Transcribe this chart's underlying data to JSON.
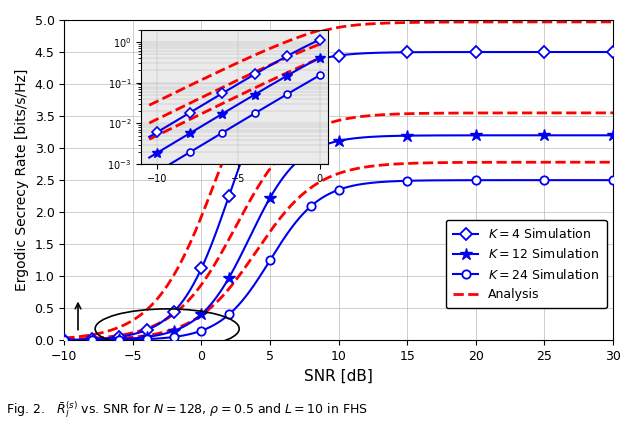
{
  "xlabel": "SNR [dB]",
  "ylabel": "Ergodic Secrecy Rate [bits/s/Hz]",
  "xlim": [
    -10,
    30
  ],
  "ylim": [
    0,
    5
  ],
  "yticks": [
    0,
    0.5,
    1.0,
    1.5,
    2.0,
    2.5,
    3.0,
    3.5,
    4.0,
    4.5,
    5.0
  ],
  "xticks": [
    -10,
    -5,
    0,
    5,
    10,
    15,
    20,
    25,
    30
  ],
  "blue_color": "#0000EE",
  "red_color": "#FF0000",
  "legend_labels": [
    "$K = 4$ Simulation",
    "$K = 12$ Simulation",
    "$K = 24$ Simulation",
    "Analysis"
  ],
  "caption": "Fig. 2.   $\\bar{R}_l^{(s)}$ vs. SNR for $N = 128$, $\\rho = 0.5$ and $L = 10$ in FHS"
}
